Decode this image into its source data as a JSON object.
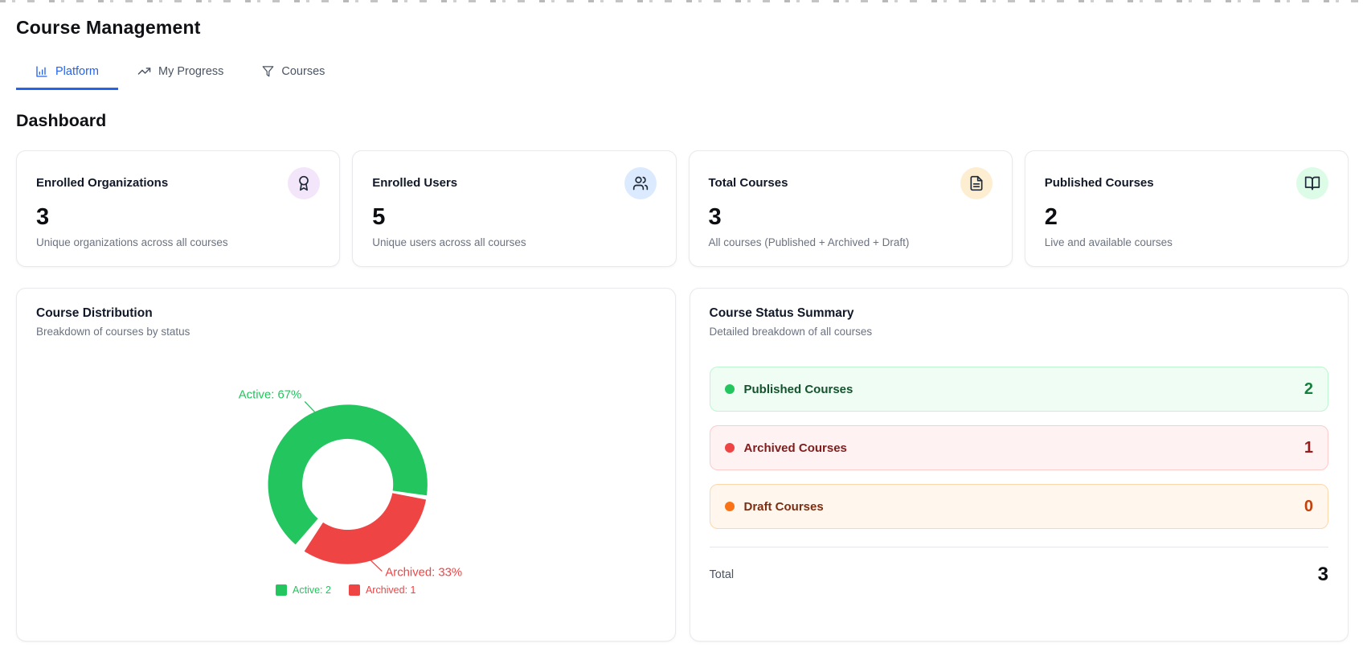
{
  "page": {
    "title": "Course Management",
    "section_heading": "Dashboard"
  },
  "tabs": [
    {
      "label": "Platform",
      "icon": "chart-column-icon",
      "active": true,
      "accent_color": "#2563eb"
    },
    {
      "label": "My Progress",
      "icon": "trending-up-icon",
      "active": false
    },
    {
      "label": "Courses",
      "icon": "funnel-icon",
      "active": false
    }
  ],
  "stat_cards": [
    {
      "title": "Enrolled Organizations",
      "value": "3",
      "description": "Unique organizations across all courses",
      "icon": "award-icon",
      "icon_bg": "#f3e6fb"
    },
    {
      "title": "Enrolled Users",
      "value": "5",
      "description": "Unique users across all courses",
      "icon": "users-icon",
      "icon_bg": "#dbeafe"
    },
    {
      "title": "Total Courses",
      "value": "3",
      "description": "All courses (Published + Archived + Draft)",
      "icon": "file-text-icon",
      "icon_bg": "#fdeed2"
    },
    {
      "title": "Published Courses",
      "value": "2",
      "description": "Live and available courses",
      "icon": "book-open-icon",
      "icon_bg": "#dcfce7"
    }
  ],
  "distribution_card": {
    "title": "Course Distribution",
    "subtitle": "Breakdown of courses by status"
  },
  "chart_data": {
    "type": "pie",
    "style": "donut",
    "series": [
      {
        "name": "Active",
        "value": 2,
        "percent": 67,
        "color": "#22c55e",
        "callout": "Active: 67%",
        "legend": "Active: 2"
      },
      {
        "name": "Archived",
        "value": 1,
        "percent": 33,
        "color": "#ef4444",
        "callout": "Archived: 33%",
        "legend": "Archived: 1"
      }
    ],
    "inner_radius_ratio": 0.57,
    "slice_angles_deg": {
      "active_start": 221,
      "active_end": 458,
      "archived_start": 101,
      "archived_end": 213
    },
    "legend_position": "bottom",
    "title": "Course Distribution"
  },
  "summary_card": {
    "title": "Course Status Summary",
    "subtitle": "Detailed breakdown of all courses",
    "rows": [
      {
        "label": "Published Courses",
        "value": "2",
        "dot_color": "#22c55e",
        "bg": "#f0fdf4",
        "border": "#bbf7d0",
        "label_color": "#14532d",
        "value_color": "#15803d"
      },
      {
        "label": "Archived Courses",
        "value": "1",
        "dot_color": "#ef4444",
        "bg": "#fef2f2",
        "border": "#fecaca",
        "label_color": "#7f1d1d",
        "value_color": "#991b1b"
      },
      {
        "label": "Draft Courses",
        "value": "0",
        "dot_color": "#f97316",
        "bg": "#fff7ed",
        "border": "#fed7aa",
        "label_color": "#7c2d12",
        "value_color": "#c2410c"
      }
    ],
    "total_label": "Total",
    "total_value": "3"
  }
}
